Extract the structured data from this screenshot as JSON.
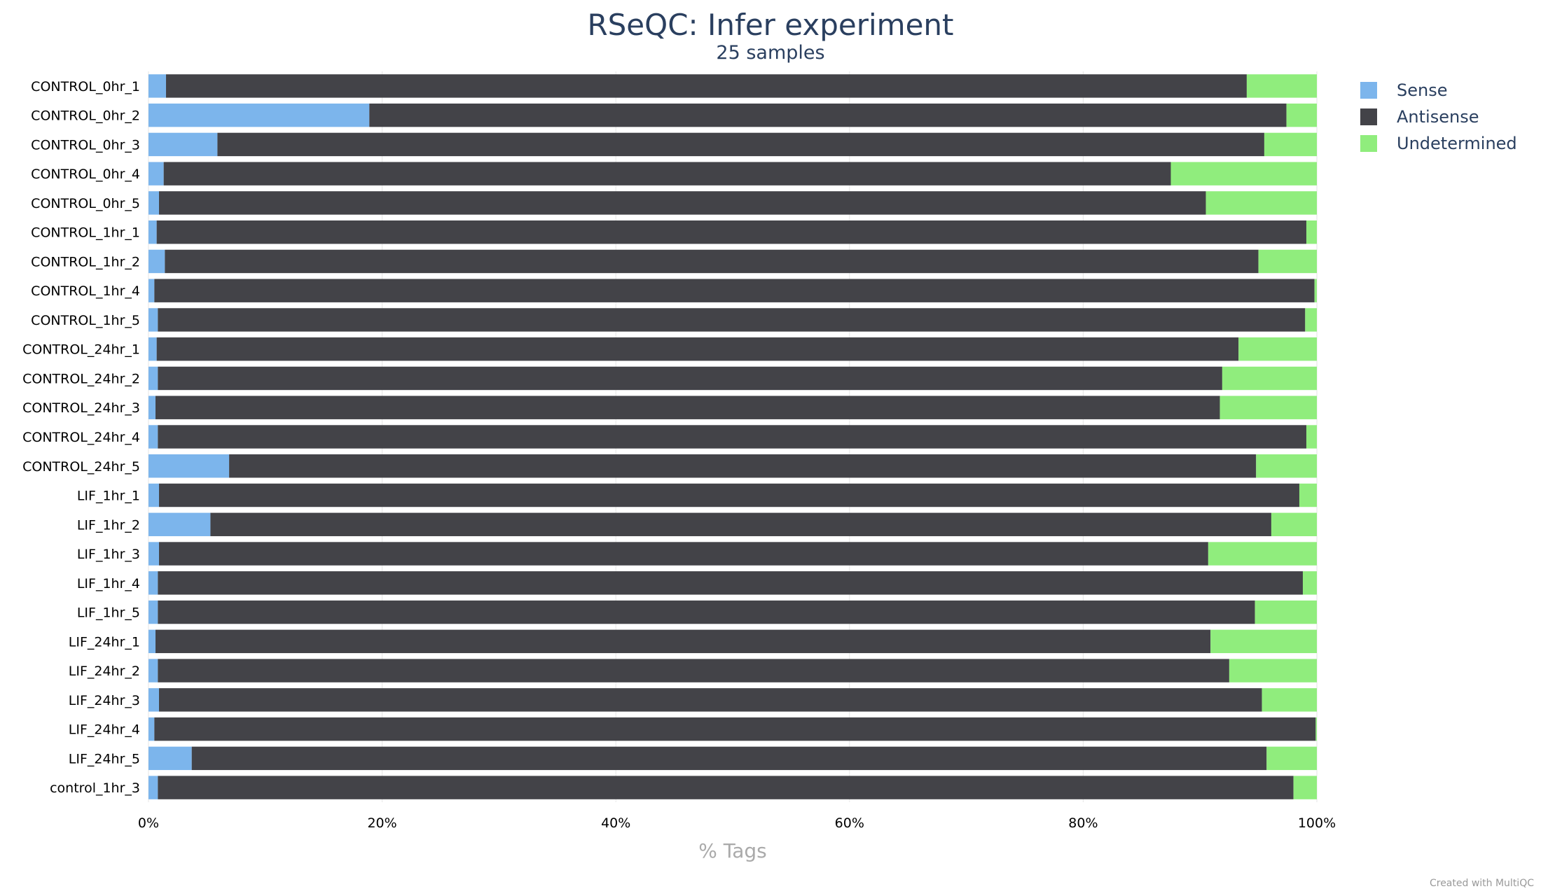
{
  "chart_data": {
    "type": "bar",
    "orientation": "horizontal",
    "stacked": true,
    "title": "RSeQC: Infer experiment",
    "subtitle": "25 samples",
    "xlabel": "% Tags",
    "ylabel": "",
    "xlim": [
      0,
      100
    ],
    "xticks": [
      "0%",
      "20%",
      "40%",
      "60%",
      "80%",
      "100%"
    ],
    "grid": true,
    "legend_position": "top-right",
    "categories": [
      "CONTROL_0hr_1",
      "CONTROL_0hr_2",
      "CONTROL_0hr_3",
      "CONTROL_0hr_4",
      "CONTROL_0hr_5",
      "CONTROL_1hr_1",
      "CONTROL_1hr_2",
      "CONTROL_1hr_4",
      "CONTROL_1hr_5",
      "CONTROL_24hr_1",
      "CONTROL_24hr_2",
      "CONTROL_24hr_3",
      "CONTROL_24hr_4",
      "CONTROL_24hr_5",
      "LIF_1hr_1",
      "LIF_1hr_2",
      "LIF_1hr_3",
      "LIF_1hr_4",
      "LIF_1hr_5",
      "LIF_24hr_1",
      "LIF_24hr_2",
      "LIF_24hr_3",
      "LIF_24hr_4",
      "LIF_24hr_5",
      "control_1hr_3"
    ],
    "series": [
      {
        "name": "Sense",
        "color": "#7cb5ec",
        "values": [
          1.5,
          18.9,
          5.9,
          1.3,
          0.9,
          0.7,
          1.4,
          0.5,
          0.8,
          0.7,
          0.8,
          0.6,
          0.8,
          6.9,
          0.9,
          5.3,
          0.9,
          0.8,
          0.8,
          0.6,
          0.8,
          0.9,
          0.5,
          3.7,
          0.8
        ]
      },
      {
        "name": "Antisense",
        "color": "#434348",
        "values": [
          92.5,
          78.5,
          89.6,
          86.2,
          89.6,
          98.4,
          93.6,
          99.3,
          98.2,
          92.6,
          91.1,
          91.1,
          98.3,
          87.9,
          97.6,
          90.8,
          89.8,
          98.0,
          93.9,
          90.3,
          91.7,
          94.4,
          99.4,
          92.0,
          97.2
        ]
      },
      {
        "name": "Undetermined",
        "color": "#90ed7d",
        "values": [
          6.0,
          2.6,
          4.5,
          12.5,
          9.5,
          0.9,
          5.0,
          0.2,
          1.0,
          6.7,
          8.1,
          8.3,
          0.9,
          5.2,
          1.5,
          3.9,
          9.3,
          1.2,
          5.3,
          9.1,
          7.5,
          4.7,
          0.1,
          4.3,
          2.0
        ]
      }
    ]
  },
  "credit": "Created with MultiQC"
}
